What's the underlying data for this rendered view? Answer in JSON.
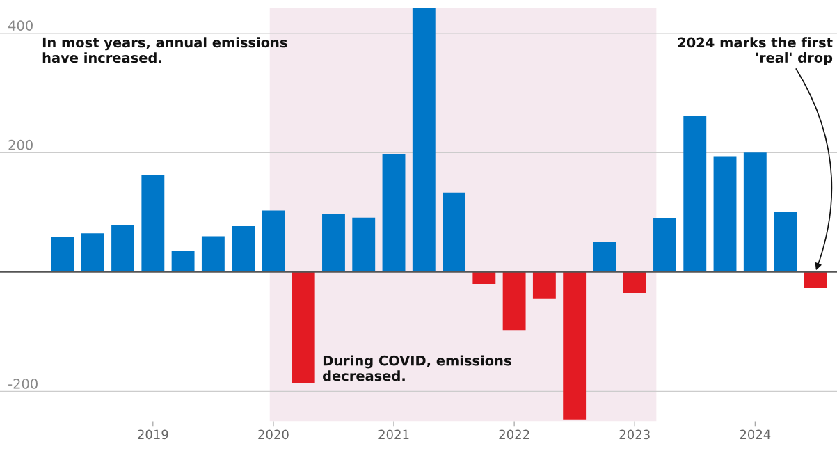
{
  "chart_data": {
    "type": "bar",
    "x": [
      2018.25,
      2018.5,
      2018.75,
      2019,
      2019.25,
      2019.5,
      2019.75,
      2020,
      2020.25,
      2020.5,
      2020.75,
      2021,
      2021.25,
      2021.5,
      2021.75,
      2022,
      2022.25,
      2022.5,
      2022.75,
      2023,
      2023.25,
      2023.5,
      2023.75,
      2024,
      2024.25,
      2024.5
    ],
    "values": [
      59,
      65,
      79,
      163,
      35,
      60,
      77,
      103,
      -186,
      97,
      91,
      197,
      442,
      133,
      -20,
      -97,
      -44,
      -247,
      50,
      -35,
      90,
      262,
      194,
      200,
      101,
      -27
    ],
    "colors": [
      "#0077c8",
      "#0077c8",
      "#0077c8",
      "#0077c8",
      "#0077c8",
      "#0077c8",
      "#0077c8",
      "#0077c8",
      "#e31b23",
      "#0077c8",
      "#0077c8",
      "#0077c8",
      "#0077c8",
      "#0077c8",
      "#e31b23",
      "#e31b23",
      "#e31b23",
      "#e31b23",
      "#0077c8",
      "#e31b23",
      "#0077c8",
      "#0077c8",
      "#0077c8",
      "#0077c8",
      "#0077c8",
      "#e31b23"
    ],
    "xlim": [
      2017.73,
      2024.68
    ],
    "ylim": [
      -250,
      442
    ],
    "xticks": [
      2019,
      2020,
      2021,
      2022,
      2023,
      2024
    ],
    "yticks": [
      -200,
      200,
      400
    ],
    "grid": "y",
    "ref_lines": [
      {
        "axis": "y",
        "value": 0,
        "color": "#555555"
      }
    ],
    "bands": [
      {
        "axis": "x",
        "from": 2019.97,
        "to": 2023.18,
        "color": "#f5e9ef"
      }
    ],
    "annotations": [
      "In most years, annual emissions\nhave increased.",
      "During COVID, emissions\ndecreased.",
      {
        "text": "2024 marks the first\n'real' drop",
        "x": 2024.5,
        "y": 0
      }
    ]
  }
}
